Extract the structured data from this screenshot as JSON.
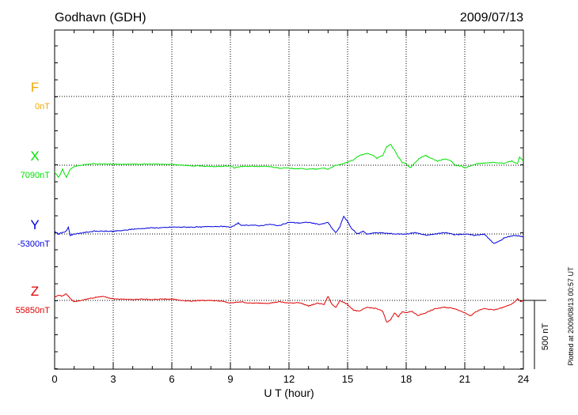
{
  "header": {
    "station": "Godhavn (GDH)",
    "date": "2009/07/13"
  },
  "footer": {
    "plotted_note": "Plotted at 2009/08/13 00:57 UT"
  },
  "chart_data": {
    "type": "line",
    "title": "Godhavn (GDH)",
    "date": "2009/07/13",
    "xlabel": "U T (hour)",
    "xlim": [
      0,
      24
    ],
    "xticks": [
      0,
      3,
      6,
      9,
      12,
      15,
      18,
      21,
      24
    ],
    "grid": true,
    "scale_bar": {
      "value": 500,
      "label": "500 nT"
    },
    "colors": {
      "F": "#f0a800",
      "X": "#00e000",
      "Y": "#0000dd",
      "Z": "#e00000"
    },
    "series": [
      {
        "name": "F",
        "baseline_label": "0nT",
        "color": "#f0a800",
        "points": []
      },
      {
        "name": "X",
        "baseline_label": "7090nT",
        "color": "#00e000",
        "points": [
          [
            0,
            7040
          ],
          [
            0.2,
            7000
          ],
          [
            0.4,
            7060
          ],
          [
            0.6,
            7000
          ],
          [
            0.8,
            7060
          ],
          [
            1,
            7080
          ],
          [
            1.5,
            7095
          ],
          [
            2,
            7100
          ],
          [
            2.5,
            7100
          ],
          [
            3,
            7098
          ],
          [
            4,
            7097
          ],
          [
            5,
            7098
          ],
          [
            6,
            7095
          ],
          [
            6.5,
            7092
          ],
          [
            7,
            7085
          ],
          [
            7.5,
            7085
          ],
          [
            8,
            7080
          ],
          [
            8.5,
            7082
          ],
          [
            9,
            7085
          ],
          [
            9.2,
            7070
          ],
          [
            9.5,
            7080
          ],
          [
            10,
            7083
          ],
          [
            11,
            7080
          ],
          [
            11.5,
            7070
          ],
          [
            12,
            7068
          ],
          [
            12.5,
            7065
          ],
          [
            13,
            7062
          ],
          [
            13.5,
            7062
          ],
          [
            13.8,
            7070
          ],
          [
            14,
            7060
          ],
          [
            14.3,
            7085
          ],
          [
            14.5,
            7090
          ],
          [
            15,
            7110
          ],
          [
            15.3,
            7130
          ],
          [
            15.6,
            7160
          ],
          [
            16,
            7175
          ],
          [
            16.3,
            7165
          ],
          [
            16.5,
            7140
          ],
          [
            16.8,
            7160
          ],
          [
            17,
            7225
          ],
          [
            17.2,
            7240
          ],
          [
            17.4,
            7200
          ],
          [
            17.6,
            7150
          ],
          [
            17.8,
            7110
          ],
          [
            18,
            7100
          ],
          [
            18.2,
            7070
          ],
          [
            18.4,
            7100
          ],
          [
            18.6,
            7130
          ],
          [
            18.8,
            7150
          ],
          [
            19,
            7160
          ],
          [
            19.3,
            7140
          ],
          [
            19.6,
            7120
          ],
          [
            20,
            7135
          ],
          [
            20.3,
            7120
          ],
          [
            20.5,
            7090
          ],
          [
            20.8,
            7085
          ],
          [
            21,
            7070
          ],
          [
            21.3,
            7085
          ],
          [
            21.6,
            7100
          ],
          [
            22,
            7105
          ],
          [
            22.5,
            7110
          ],
          [
            23,
            7105
          ],
          [
            23.4,
            7120
          ],
          [
            23.7,
            7100
          ],
          [
            23.8,
            7150
          ],
          [
            24,
            7120
          ]
        ]
      },
      {
        "name": "Y",
        "baseline_label": "-5300nT",
        "color": "#0000dd",
        "points": [
          [
            0,
            -5280
          ],
          [
            0.2,
            -5300
          ],
          [
            0.4,
            -5290
          ],
          [
            0.6,
            -5280
          ],
          [
            0.7,
            -5250
          ],
          [
            0.8,
            -5310
          ],
          [
            1,
            -5300
          ],
          [
            1.5,
            -5290
          ],
          [
            2,
            -5280
          ],
          [
            2.5,
            -5280
          ],
          [
            3,
            -5280
          ],
          [
            3.5,
            -5275
          ],
          [
            4,
            -5265
          ],
          [
            4.5,
            -5260
          ],
          [
            5,
            -5255
          ],
          [
            5.5,
            -5255
          ],
          [
            6,
            -5250
          ],
          [
            6.5,
            -5250
          ],
          [
            7,
            -5250
          ],
          [
            7.5,
            -5250
          ],
          [
            8,
            -5245
          ],
          [
            8.5,
            -5245
          ],
          [
            9,
            -5250
          ],
          [
            9.2,
            -5240
          ],
          [
            9.4,
            -5220
          ],
          [
            9.6,
            -5240
          ],
          [
            10,
            -5235
          ],
          [
            10.5,
            -5240
          ],
          [
            11,
            -5230
          ],
          [
            11.5,
            -5240
          ],
          [
            12,
            -5215
          ],
          [
            12.5,
            -5220
          ],
          [
            13,
            -5215
          ],
          [
            13.5,
            -5230
          ],
          [
            13.8,
            -5225
          ],
          [
            14,
            -5215
          ],
          [
            14.2,
            -5260
          ],
          [
            14.4,
            -5290
          ],
          [
            14.6,
            -5250
          ],
          [
            14.8,
            -5170
          ],
          [
            15,
            -5210
          ],
          [
            15.2,
            -5260
          ],
          [
            15.5,
            -5300
          ],
          [
            15.8,
            -5280
          ],
          [
            16,
            -5300
          ],
          [
            16.5,
            -5290
          ],
          [
            17,
            -5295
          ],
          [
            17.5,
            -5300
          ],
          [
            18,
            -5300
          ],
          [
            18.5,
            -5290
          ],
          [
            19,
            -5310
          ],
          [
            19.5,
            -5300
          ],
          [
            20,
            -5290
          ],
          [
            20.5,
            -5305
          ],
          [
            21,
            -5300
          ],
          [
            21.5,
            -5310
          ],
          [
            22,
            -5300
          ],
          [
            22.2,
            -5330
          ],
          [
            22.5,
            -5370
          ],
          [
            22.8,
            -5350
          ],
          [
            23,
            -5330
          ],
          [
            23.5,
            -5310
          ],
          [
            24,
            -5320
          ]
        ]
      },
      {
        "name": "Z",
        "baseline_label": "55850nT",
        "color": "#e00000",
        "points": [
          [
            0,
            55870
          ],
          [
            0.2,
            55890
          ],
          [
            0.4,
            55880
          ],
          [
            0.6,
            55900
          ],
          [
            0.8,
            55860
          ],
          [
            1,
            55840
          ],
          [
            1.5,
            55855
          ],
          [
            2,
            55870
          ],
          [
            2.5,
            55880
          ],
          [
            3,
            55860
          ],
          [
            3.5,
            55860
          ],
          [
            4,
            55855
          ],
          [
            4.5,
            55860
          ],
          [
            5,
            55855
          ],
          [
            5.5,
            55860
          ],
          [
            6,
            55860
          ],
          [
            6.5,
            55850
          ],
          [
            7,
            55845
          ],
          [
            7.5,
            55850
          ],
          [
            8,
            55850
          ],
          [
            8.5,
            55845
          ],
          [
            9,
            55830
          ],
          [
            9.5,
            55840
          ],
          [
            10,
            55830
          ],
          [
            10.5,
            55830
          ],
          [
            11,
            55830
          ],
          [
            11.5,
            55840
          ],
          [
            12,
            55830
          ],
          [
            12.5,
            55835
          ],
          [
            13,
            55810
          ],
          [
            13.5,
            55830
          ],
          [
            13.8,
            55820
          ],
          [
            14,
            55880
          ],
          [
            14.2,
            55820
          ],
          [
            14.4,
            55800
          ],
          [
            14.6,
            55850
          ],
          [
            15,
            55820
          ],
          [
            15.3,
            55780
          ],
          [
            15.6,
            55770
          ],
          [
            16,
            55800
          ],
          [
            16.5,
            55790
          ],
          [
            16.8,
            55770
          ],
          [
            17,
            55690
          ],
          [
            17.2,
            55710
          ],
          [
            17.4,
            55760
          ],
          [
            17.6,
            55730
          ],
          [
            17.8,
            55770
          ],
          [
            18,
            55760
          ],
          [
            18.3,
            55770
          ],
          [
            18.6,
            55740
          ],
          [
            19,
            55760
          ],
          [
            19.5,
            55790
          ],
          [
            20,
            55800
          ],
          [
            20.5,
            55790
          ],
          [
            21,
            55760
          ],
          [
            21.3,
            55740
          ],
          [
            21.6,
            55770
          ],
          [
            22,
            55790
          ],
          [
            22.5,
            55780
          ],
          [
            23,
            55800
          ],
          [
            23.5,
            55830
          ],
          [
            23.7,
            55860
          ],
          [
            23.9,
            55840
          ],
          [
            24,
            55850
          ]
        ]
      }
    ]
  }
}
